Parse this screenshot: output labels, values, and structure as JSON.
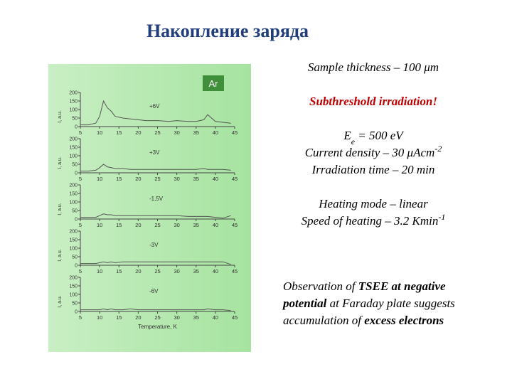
{
  "slide": {
    "title": "Накопление заряда",
    "panel_label": "Ar",
    "notes": [
      [
        {
          "text": "Sample thickness – 100 μm"
        }
      ],
      [
        {
          "text": "Subthreshold irradiation!",
          "b": true,
          "color": "#c00000"
        }
      ],
      [
        {
          "text": "E"
        },
        {
          "text": "e",
          "sub": true
        },
        {
          "text": " = 500 eV"
        }
      ],
      [
        {
          "text": "Current density – 30 μAcm"
        },
        {
          "text": "-2",
          "sup": true
        }
      ],
      [
        {
          "text": "Irradiation time – 20 min"
        }
      ],
      [
        {
          "text": "Heating mode – linear"
        }
      ],
      [
        {
          "text": "Speed of heating – 3.2 Kmin"
        },
        {
          "text": "-1",
          "sup": true
        }
      ],
      [
        {
          "text": "Observation of "
        },
        {
          "text": "TSEE at negative",
          "b": true
        }
      ],
      [
        {
          "text": "potential",
          "b": true
        },
        {
          "text": " at Faraday plate suggests"
        }
      ],
      [
        {
          "text": "accumulation of "
        },
        {
          "text": "excess electrons",
          "b": true
        }
      ]
    ]
  },
  "chart_data": [
    {
      "type": "line",
      "label": "+6V",
      "ylabel": "I, a.u.",
      "x": [
        5,
        7,
        9,
        10,
        11,
        12,
        13,
        14,
        16,
        18,
        20,
        22,
        25,
        28,
        30,
        33,
        35,
        37,
        38,
        40,
        42,
        44
      ],
      "series": [
        {
          "color": "#555555",
          "values": [
            10,
            10,
            20,
            60,
            150,
            110,
            90,
            60,
            50,
            45,
            40,
            35,
            35,
            30,
            35,
            30,
            30,
            40,
            70,
            30,
            25,
            20
          ]
        }
      ],
      "xlim": [
        5,
        45
      ],
      "ylim": [
        0,
        200
      ],
      "xticks": [
        5,
        10,
        15,
        20,
        25,
        30,
        35,
        40,
        45
      ],
      "yticks": [
        0,
        50,
        100,
        150,
        200
      ]
    },
    {
      "type": "line",
      "label": "+3V",
      "ylabel": "I, a.u.",
      "x": [
        5,
        7,
        9,
        10,
        11,
        12,
        13,
        14,
        16,
        18,
        20,
        22,
        25,
        28,
        30,
        33,
        35,
        37,
        38,
        40,
        42,
        44
      ],
      "series": [
        {
          "color": "#555555",
          "values": [
            10,
            10,
            15,
            30,
            50,
            35,
            30,
            25,
            25,
            20,
            20,
            20,
            20,
            20,
            20,
            20,
            20,
            25,
            20,
            20,
            20,
            15
          ]
        }
      ],
      "xlim": [
        5,
        45
      ],
      "ylim": [
        0,
        200
      ],
      "xticks": [
        5,
        10,
        15,
        20,
        25,
        30,
        35,
        40,
        45
      ],
      "yticks": [
        0,
        50,
        100,
        150,
        200
      ]
    },
    {
      "type": "line",
      "label": "-1,5V",
      "ylabel": "I, a.u.",
      "x": [
        5,
        7,
        9,
        10,
        11,
        12,
        13,
        14,
        16,
        18,
        20,
        22,
        25,
        28,
        30,
        33,
        35,
        37,
        38,
        40,
        42,
        44
      ],
      "series": [
        {
          "color": "#555555",
          "values": [
            10,
            10,
            10,
            20,
            30,
            25,
            25,
            20,
            20,
            20,
            20,
            20,
            20,
            20,
            20,
            15,
            15,
            15,
            15,
            10,
            5,
            20
          ]
        }
      ],
      "xlim": [
        5,
        45
      ],
      "ylim": [
        0,
        200
      ],
      "xticks": [
        5,
        10,
        15,
        20,
        25,
        30,
        35,
        40,
        45
      ],
      "yticks": [
        0,
        50,
        100,
        150,
        200
      ]
    },
    {
      "type": "line",
      "label": "-3V",
      "ylabel": "I, a.u.",
      "x": [
        5,
        7,
        9,
        10,
        11,
        12,
        13,
        14,
        16,
        18,
        20,
        22,
        25,
        28,
        30,
        33,
        35,
        37,
        38,
        40,
        42,
        44
      ],
      "series": [
        {
          "color": "#555555",
          "values": [
            10,
            10,
            10,
            15,
            20,
            15,
            20,
            15,
            20,
            20,
            20,
            20,
            20,
            20,
            20,
            20,
            20,
            20,
            20,
            20,
            20,
            5
          ]
        }
      ],
      "xlim": [
        5,
        45
      ],
      "ylim": [
        0,
        200
      ],
      "xticks": [
        5,
        10,
        15,
        20,
        25,
        30,
        35,
        40,
        45
      ],
      "yticks": [
        0,
        50,
        100,
        150,
        200
      ]
    },
    {
      "type": "line",
      "label": "-6V",
      "ylabel": "I, a.u.",
      "xlabel": "Temperature, K",
      "x": [
        5,
        7,
        9,
        10,
        11,
        12,
        13,
        14,
        16,
        18,
        20,
        22,
        25,
        28,
        30,
        33,
        35,
        37,
        38,
        40,
        42,
        44
      ],
      "series": [
        {
          "color": "#555555",
          "values": [
            10,
            10,
            10,
            10,
            15,
            10,
            15,
            10,
            10,
            15,
            10,
            10,
            10,
            10,
            10,
            10,
            10,
            10,
            15,
            10,
            10,
            5
          ]
        }
      ],
      "xlim": [
        5,
        45
      ],
      "ylim": [
        0,
        200
      ],
      "xticks": [
        5,
        10,
        15,
        20,
        25,
        30,
        35,
        40,
        45
      ],
      "yticks": [
        0,
        50,
        100,
        150,
        200
      ]
    }
  ]
}
